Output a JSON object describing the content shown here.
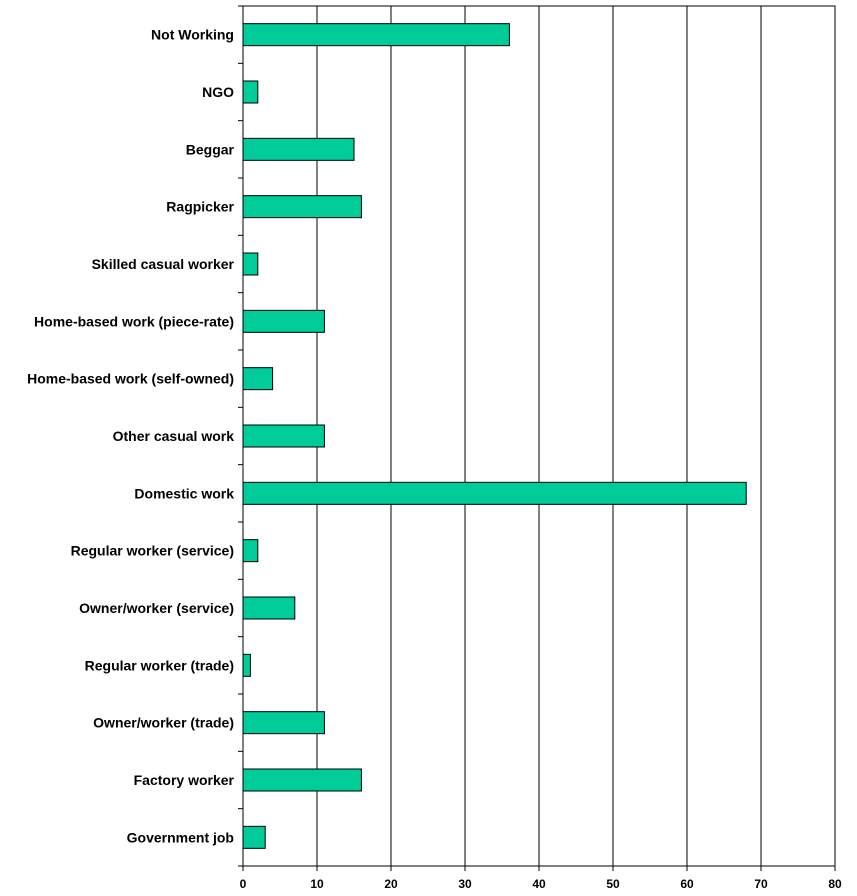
{
  "chart_data": {
    "type": "bar",
    "orientation": "horizontal",
    "categories": [
      "Not Working",
      "NGO",
      "Beggar",
      "Ragpicker",
      "Skilled casual worker",
      "Home-based work (piece-rate)",
      "Home-based work (self-owned)",
      "Other casual work",
      "Domestic work",
      "Regular worker (service)",
      "Owner/worker (service)",
      "Regular worker (trade)",
      "Owner/worker (trade)",
      "Factory worker",
      "Government job"
    ],
    "values": [
      36,
      2,
      15,
      16,
      2,
      11,
      4,
      11,
      68,
      2,
      7,
      1,
      11,
      16,
      3
    ],
    "xlim": [
      0,
      80
    ],
    "xticks": [
      "0",
      "10",
      "20",
      "30",
      "40",
      "50",
      "60",
      "70",
      "80"
    ],
    "grid": "vertical",
    "bar_color": "#00cc99",
    "title": "",
    "xlabel": "",
    "ylabel": ""
  }
}
